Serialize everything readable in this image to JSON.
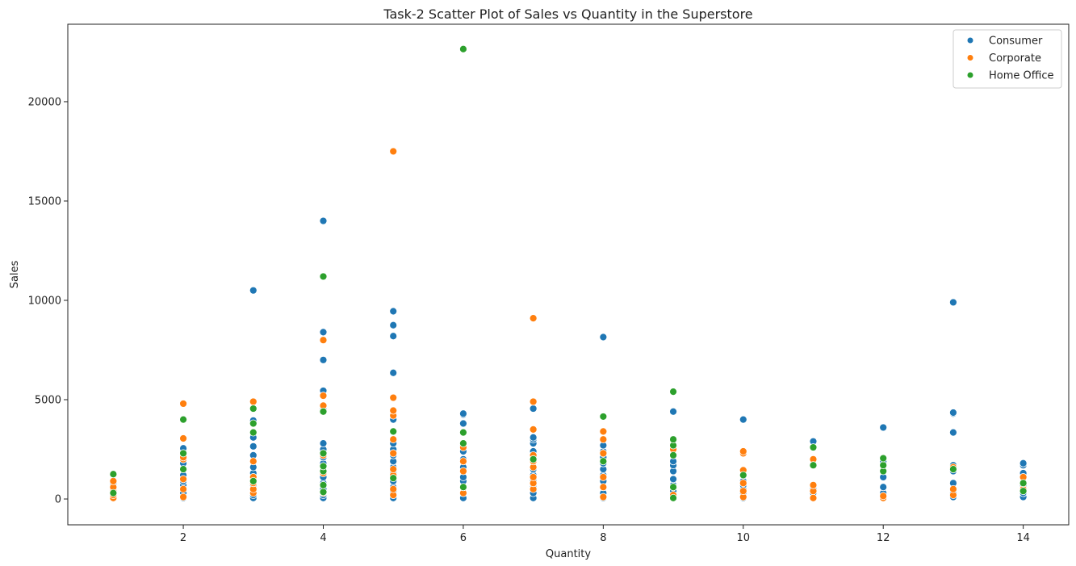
{
  "chart_data": {
    "type": "scatter",
    "title": "Task-2 Scatter Plot of Sales vs Quantity in the Superstore",
    "xlabel": "Quantity",
    "ylabel": "Sales",
    "xlim": [
      0.35,
      14.65
    ],
    "ylim": [
      -1300,
      23900
    ],
    "xticks": [
      2,
      4,
      6,
      8,
      10,
      12,
      14
    ],
    "yticks": [
      0,
      5000,
      10000,
      15000,
      20000
    ],
    "grid": false,
    "legend_position": "top-right",
    "series": [
      {
        "name": "Consumer",
        "color": "#1f77b4",
        "points": [
          [
            1,
            100
          ],
          [
            1,
            250
          ],
          [
            1,
            500
          ],
          [
            1,
            800
          ],
          [
            2,
            50
          ],
          [
            2,
            150
          ],
          [
            2,
            300
          ],
          [
            2,
            550
          ],
          [
            2,
            700
          ],
          [
            2,
            900
          ],
          [
            2,
            1200
          ],
          [
            2,
            1500
          ],
          [
            2,
            1800
          ],
          [
            2,
            2100
          ],
          [
            2,
            2550
          ],
          [
            3,
            50
          ],
          [
            3,
            200
          ],
          [
            3,
            400
          ],
          [
            3,
            700
          ],
          [
            3,
            1000
          ],
          [
            3,
            1300
          ],
          [
            3,
            1600
          ],
          [
            3,
            2200
          ],
          [
            3,
            2650
          ],
          [
            3,
            3100
          ],
          [
            3,
            3800
          ],
          [
            3,
            3950
          ],
          [
            3,
            10500
          ],
          [
            4,
            50
          ],
          [
            4,
            200
          ],
          [
            4,
            500
          ],
          [
            4,
            800
          ],
          [
            4,
            1100
          ],
          [
            4,
            1400
          ],
          [
            4,
            1800
          ],
          [
            4,
            2100
          ],
          [
            4,
            2500
          ],
          [
            4,
            2800
          ],
          [
            4,
            4500
          ],
          [
            4,
            5450
          ],
          [
            4,
            7000
          ],
          [
            4,
            8400
          ],
          [
            4,
            14000
          ],
          [
            5,
            50
          ],
          [
            5,
            200
          ],
          [
            5,
            400
          ],
          [
            5,
            600
          ],
          [
            5,
            900
          ],
          [
            5,
            1100
          ],
          [
            5,
            1300
          ],
          [
            5,
            1600
          ],
          [
            5,
            1900
          ],
          [
            5,
            2200
          ],
          [
            5,
            2500
          ],
          [
            5,
            2800
          ],
          [
            5,
            4000
          ],
          [
            5,
            6350
          ],
          [
            5,
            8200
          ],
          [
            5,
            8750
          ],
          [
            5,
            9450
          ],
          [
            6,
            50
          ],
          [
            6,
            300
          ],
          [
            6,
            600
          ],
          [
            6,
            900
          ],
          [
            6,
            1100
          ],
          [
            6,
            1600
          ],
          [
            6,
            2000
          ],
          [
            6,
            2400
          ],
          [
            6,
            2700
          ],
          [
            6,
            3800
          ],
          [
            6,
            4250
          ],
          [
            6,
            4300
          ],
          [
            7,
            50
          ],
          [
            7,
            300
          ],
          [
            7,
            600
          ],
          [
            7,
            900
          ],
          [
            7,
            1200
          ],
          [
            7,
            1500
          ],
          [
            7,
            2000
          ],
          [
            7,
            2400
          ],
          [
            7,
            2800
          ],
          [
            7,
            3000
          ],
          [
            7,
            3100
          ],
          [
            7,
            4550
          ],
          [
            8,
            50
          ],
          [
            8,
            300
          ],
          [
            8,
            600
          ],
          [
            8,
            900
          ],
          [
            8,
            1200
          ],
          [
            8,
            1500
          ],
          [
            8,
            1800
          ],
          [
            8,
            2100
          ],
          [
            8,
            2400
          ],
          [
            8,
            2700
          ],
          [
            8,
            8150
          ],
          [
            9,
            50
          ],
          [
            9,
            400
          ],
          [
            9,
            700
          ],
          [
            9,
            1000
          ],
          [
            9,
            1400
          ],
          [
            9,
            1700
          ],
          [
            9,
            1900
          ],
          [
            9,
            4400
          ],
          [
            10,
            50
          ],
          [
            10,
            300
          ],
          [
            10,
            500
          ],
          [
            10,
            700
          ],
          [
            10,
            900
          ],
          [
            10,
            4000
          ],
          [
            11,
            100
          ],
          [
            11,
            300
          ],
          [
            11,
            500
          ],
          [
            11,
            2900
          ],
          [
            12,
            300
          ],
          [
            12,
            600
          ],
          [
            12,
            1100
          ],
          [
            12,
            1700
          ],
          [
            12,
            1900
          ],
          [
            12,
            3600
          ],
          [
            13,
            100
          ],
          [
            13,
            300
          ],
          [
            13,
            800
          ],
          [
            13,
            1400
          ],
          [
            13,
            1700
          ],
          [
            13,
            3350
          ],
          [
            13,
            4300
          ],
          [
            13,
            4350
          ],
          [
            13,
            9900
          ],
          [
            14,
            100
          ],
          [
            14,
            300
          ],
          [
            14,
            700
          ],
          [
            14,
            1300
          ],
          [
            14,
            1700
          ],
          [
            14,
            1800
          ]
        ]
      },
      {
        "name": "Corporate",
        "color": "#ff7f0e",
        "points": [
          [
            1,
            50
          ],
          [
            1,
            200
          ],
          [
            1,
            400
          ],
          [
            1,
            600
          ],
          [
            1,
            900
          ],
          [
            2,
            100
          ],
          [
            2,
            500
          ],
          [
            2,
            1000
          ],
          [
            2,
            2000
          ],
          [
            2,
            2100
          ],
          [
            2,
            3050
          ],
          [
            2,
            4800
          ],
          [
            3,
            300
          ],
          [
            3,
            500
          ],
          [
            3,
            800
          ],
          [
            3,
            1100
          ],
          [
            3,
            1900
          ],
          [
            3,
            4900
          ],
          [
            4,
            300
          ],
          [
            4,
            1300
          ],
          [
            4,
            2200
          ],
          [
            4,
            4700
          ],
          [
            4,
            5200
          ],
          [
            4,
            8000
          ],
          [
            5,
            200
          ],
          [
            5,
            500
          ],
          [
            5,
            1200
          ],
          [
            5,
            1500
          ],
          [
            5,
            2300
          ],
          [
            5,
            3000
          ],
          [
            5,
            4200
          ],
          [
            5,
            4450
          ],
          [
            5,
            5100
          ],
          [
            5,
            17500
          ],
          [
            6,
            300
          ],
          [
            6,
            600
          ],
          [
            6,
            1400
          ],
          [
            6,
            1900
          ],
          [
            6,
            2600
          ],
          [
            7,
            500
          ],
          [
            7,
            800
          ],
          [
            7,
            1100
          ],
          [
            7,
            1600
          ],
          [
            7,
            1900
          ],
          [
            7,
            2200
          ],
          [
            7,
            3500
          ],
          [
            7,
            4900
          ],
          [
            7,
            9100
          ],
          [
            8,
            100
          ],
          [
            8,
            600
          ],
          [
            8,
            1100
          ],
          [
            8,
            2300
          ],
          [
            8,
            3000
          ],
          [
            8,
            3400
          ],
          [
            9,
            200
          ],
          [
            9,
            600
          ],
          [
            9,
            2500
          ],
          [
            10,
            100
          ],
          [
            10,
            400
          ],
          [
            10,
            800
          ],
          [
            10,
            1450
          ],
          [
            10,
            2300
          ],
          [
            10,
            2400
          ],
          [
            11,
            50
          ],
          [
            11,
            400
          ],
          [
            11,
            700
          ],
          [
            11,
            2000
          ],
          [
            12,
            50
          ],
          [
            12,
            150
          ],
          [
            13,
            200
          ],
          [
            13,
            500
          ],
          [
            13,
            1500
          ],
          [
            13,
            1600
          ],
          [
            14,
            500
          ],
          [
            14,
            1100
          ]
        ]
      },
      {
        "name": "Home Office",
        "color": "#2ca02c",
        "points": [
          [
            1,
            300
          ],
          [
            1,
            1250
          ],
          [
            2,
            1500
          ],
          [
            2,
            2300
          ],
          [
            2,
            4000
          ],
          [
            3,
            900
          ],
          [
            3,
            3350
          ],
          [
            3,
            3800
          ],
          [
            3,
            4550
          ],
          [
            4,
            350
          ],
          [
            4,
            700
          ],
          [
            4,
            1400
          ],
          [
            4,
            1650
          ],
          [
            4,
            2300
          ],
          [
            4,
            4400
          ],
          [
            4,
            11200
          ],
          [
            5,
            1050
          ],
          [
            5,
            3400
          ],
          [
            6,
            600
          ],
          [
            6,
            2800
          ],
          [
            6,
            3350
          ],
          [
            6,
            22650
          ],
          [
            7,
            2000
          ],
          [
            8,
            1900
          ],
          [
            8,
            4150
          ],
          [
            9,
            50
          ],
          [
            9,
            600
          ],
          [
            9,
            2200
          ],
          [
            9,
            2700
          ],
          [
            9,
            3000
          ],
          [
            9,
            5400
          ],
          [
            10,
            1200
          ],
          [
            11,
            1700
          ],
          [
            11,
            2600
          ],
          [
            12,
            1400
          ],
          [
            12,
            1700
          ],
          [
            12,
            2050
          ],
          [
            13,
            1500
          ],
          [
            14,
            400
          ],
          [
            14,
            800
          ]
        ]
      }
    ]
  }
}
